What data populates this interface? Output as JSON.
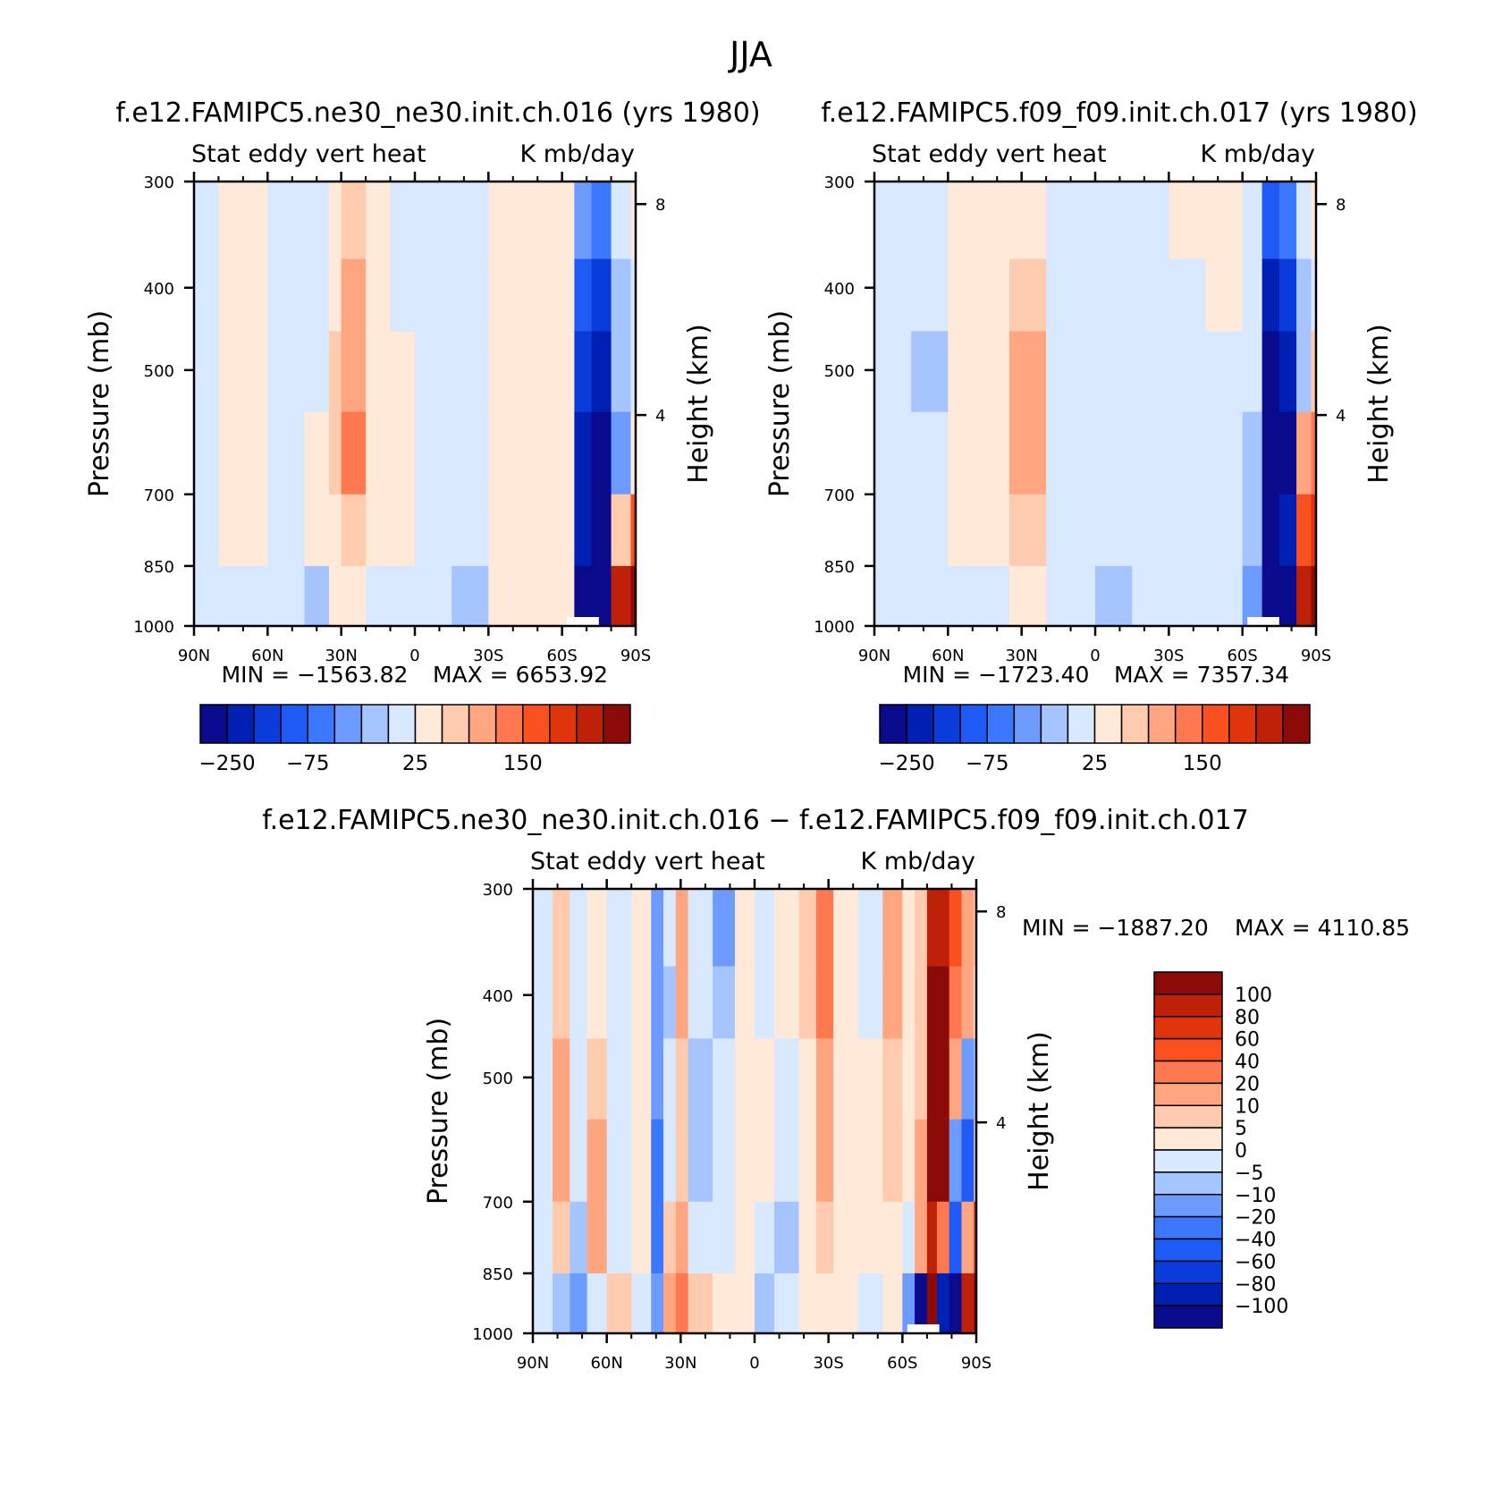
{
  "figure_title": "JJA",
  "colors": {
    "land_gap": "#ffffff",
    "axis": "#000000"
  },
  "chart_data": [
    {
      "type": "heatmap",
      "id": "p1",
      "title": "f.e12.FAMIPC5.ne30_ne30.init.ch.016 (yrs 1980)",
      "subtitle_left": "Stat eddy vert heat",
      "subtitle_right": "K mb/day",
      "ylabel": "Pressure (mb)",
      "ylabel_right": "Height (km)",
      "x_ticks": [
        "90N",
        "60N",
        "30N",
        "0",
        "30S",
        "60S",
        "90S"
      ],
      "x_range": [
        90,
        -90
      ],
      "y_ticks": [
        300,
        400,
        500,
        700,
        850,
        1000
      ],
      "y_range": [
        300,
        1000
      ],
      "height_ticks": [
        4,
        8
      ],
      "min_label": "MIN = −1563.82",
      "max_label": "MAX = 6653.92",
      "colorbar": {
        "orientation": "horizontal",
        "labels": [
          "−250",
          "−75",
          "25",
          "150"
        ],
        "colors": [
          "#0a0a8c",
          "#0020b4",
          "#0a3cdc",
          "#1e5af5",
          "#3c78ff",
          "#6e9bff",
          "#a6c4ff",
          "#d8e8ff",
          "#ffe9d8",
          "#ffcbae",
          "#ffa580",
          "#ff7850",
          "#fa5020",
          "#e0340a",
          "#be2008",
          "#8c0a08"
        ]
      },
      "field": [
        {
          "lat": 90,
          "values": [
            -1,
            -1,
            -1,
            -1,
            -1,
            -1
          ]
        },
        {
          "lat": 80,
          "values": [
            1,
            1,
            1,
            1,
            1,
            -1
          ]
        },
        {
          "lat": 70,
          "values": [
            1,
            1,
            1,
            1,
            0,
            -1
          ]
        },
        {
          "lat": 60,
          "values": [
            -1,
            -1,
            -1,
            -1,
            -1,
            -1
          ]
        },
        {
          "lat": 45,
          "values": [
            -1,
            -1,
            -1,
            1,
            1,
            -2
          ]
        },
        {
          "lat": 35,
          "values": [
            1,
            1,
            2,
            2,
            1,
            1
          ]
        },
        {
          "lat": 30,
          "values": [
            2,
            3,
            3,
            4,
            2,
            1
          ]
        },
        {
          "lat": 20,
          "values": [
            1,
            1,
            1,
            1,
            1,
            -1
          ]
        },
        {
          "lat": 10,
          "values": [
            -1,
            -1,
            1,
            1,
            1,
            -1
          ]
        },
        {
          "lat": 0,
          "values": [
            -1,
            -1,
            -1,
            -1,
            -1,
            -1
          ]
        },
        {
          "lat": -15,
          "values": [
            -1,
            -1,
            -1,
            -1,
            -1,
            -2
          ]
        },
        {
          "lat": -30,
          "values": [
            1,
            1,
            1,
            1,
            1,
            1
          ]
        },
        {
          "lat": -55,
          "values": [
            1,
            1,
            1,
            1,
            1,
            1
          ]
        },
        {
          "lat": -65,
          "values": [
            -3,
            -5,
            -6,
            -7,
            -7,
            -8
          ]
        },
        {
          "lat": -72,
          "values": [
            -4,
            -6,
            -7,
            -8,
            -8,
            -8
          ]
        },
        {
          "lat": -80,
          "values": [
            -1,
            -2,
            -2,
            -3,
            2,
            7
          ]
        },
        {
          "lat": -88,
          "values": [
            1,
            -1,
            -1,
            1,
            5,
            8
          ]
        }
      ]
    },
    {
      "type": "heatmap",
      "id": "p2",
      "title": "f.e12.FAMIPC5.f09_f09.init.ch.017 (yrs 1980)",
      "subtitle_left": "Stat eddy vert heat",
      "subtitle_right": "K mb/day",
      "ylabel": "Pressure (mb)",
      "ylabel_right": "Height (km)",
      "x_ticks": [
        "90N",
        "60N",
        "30N",
        "0",
        "30S",
        "60S",
        "90S"
      ],
      "x_range": [
        90,
        -90
      ],
      "y_ticks": [
        300,
        400,
        500,
        700,
        850,
        1000
      ],
      "y_range": [
        300,
        1000
      ],
      "height_ticks": [
        4,
        8
      ],
      "min_label": "MIN = −1723.40",
      "max_label": "MAX = 7357.34",
      "colorbar": {
        "orientation": "horizontal",
        "labels": [
          "−250",
          "−75",
          "25",
          "150"
        ],
        "colors": [
          "#0a0a8c",
          "#0020b4",
          "#0a3cdc",
          "#1e5af5",
          "#3c78ff",
          "#6e9bff",
          "#a6c4ff",
          "#d8e8ff",
          "#ffe9d8",
          "#ffcbae",
          "#ffa580",
          "#ff7850",
          "#fa5020",
          "#e0340a",
          "#be2008",
          "#8c0a08"
        ]
      },
      "field": [
        {
          "lat": 90,
          "values": [
            -1,
            -1,
            -1,
            -1,
            -1,
            -1
          ]
        },
        {
          "lat": 75,
          "values": [
            -1,
            -1,
            -2,
            -1,
            -1,
            -1
          ]
        },
        {
          "lat": 60,
          "values": [
            1,
            1,
            1,
            1,
            1,
            -1
          ]
        },
        {
          "lat": 45,
          "values": [
            1,
            1,
            1,
            1,
            1,
            -1
          ]
        },
        {
          "lat": 35,
          "values": [
            1,
            2,
            3,
            3,
            2,
            1
          ]
        },
        {
          "lat": 30,
          "values": [
            1,
            2,
            3,
            3,
            2,
            1
          ]
        },
        {
          "lat": 20,
          "values": [
            -1,
            -1,
            -1,
            -1,
            -1,
            -1
          ]
        },
        {
          "lat": 0,
          "values": [
            -1,
            -1,
            -1,
            -1,
            -1,
            -2
          ]
        },
        {
          "lat": -15,
          "values": [
            -1,
            -1,
            -1,
            -1,
            -1,
            -1
          ]
        },
        {
          "lat": -30,
          "values": [
            1,
            -1,
            -1,
            -1,
            -1,
            -1
          ]
        },
        {
          "lat": -45,
          "values": [
            1,
            1,
            -1,
            -1,
            -1,
            -1
          ]
        },
        {
          "lat": -60,
          "values": [
            -1,
            -1,
            -1,
            -2,
            -2,
            -3
          ]
        },
        {
          "lat": -68,
          "values": [
            -5,
            -7,
            -8,
            -8,
            -8,
            -8
          ]
        },
        {
          "lat": -75,
          "values": [
            -4,
            -6,
            -7,
            -8,
            -7,
            -8
          ]
        },
        {
          "lat": -82,
          "values": [
            -1,
            -2,
            -2,
            3,
            5,
            7
          ]
        },
        {
          "lat": -88,
          "values": [
            1,
            -1,
            2,
            4,
            6,
            8
          ]
        }
      ]
    },
    {
      "type": "heatmap",
      "id": "p3",
      "title": "f.e12.FAMIPC5.ne30_ne30.init.ch.016 − f.e12.FAMIPC5.f09_f09.init.ch.017",
      "subtitle_left": "Stat eddy vert heat",
      "subtitle_right": "K mb/day",
      "ylabel": "Pressure (mb)",
      "ylabel_right": "Height (km)",
      "x_ticks": [
        "90N",
        "60N",
        "30N",
        "0",
        "30S",
        "60S",
        "90S"
      ],
      "x_range": [
        90,
        -90
      ],
      "y_ticks": [
        300,
        400,
        500,
        700,
        850,
        1000
      ],
      "y_range": [
        300,
        1000
      ],
      "height_ticks": [
        4,
        8
      ],
      "min_label": "MIN = −1887.20",
      "max_label": "MAX = 4110.85",
      "colorbar": {
        "orientation": "vertical",
        "labels": [
          "100",
          "80",
          "60",
          "40",
          "20",
          "10",
          "5",
          "0",
          "−5",
          "−10",
          "−20",
          "−40",
          "−60",
          "−80",
          "−100"
        ],
        "colors": [
          "#8c0a08",
          "#be2008",
          "#e0340a",
          "#fa5020",
          "#ff7850",
          "#ffa580",
          "#ffcbae",
          "#ffe9d8",
          "#d8e8ff",
          "#a6c4ff",
          "#6e9bff",
          "#3c78ff",
          "#1e5af5",
          "#0a3cdc",
          "#0020b4",
          "#0a0a8c"
        ]
      },
      "field": [
        {
          "lat": 90,
          "values": [
            -1,
            -1,
            -1,
            -1,
            -1,
            -1
          ]
        },
        {
          "lat": 82,
          "values": [
            2,
            2,
            3,
            3,
            2,
            -2
          ]
        },
        {
          "lat": 75,
          "values": [
            -1,
            -1,
            -1,
            -1,
            -2,
            -3
          ]
        },
        {
          "lat": 68,
          "values": [
            1,
            1,
            2,
            3,
            3,
            -1
          ]
        },
        {
          "lat": 60,
          "values": [
            -1,
            -1,
            -1,
            -1,
            -1,
            2
          ]
        },
        {
          "lat": 50,
          "values": [
            1,
            1,
            1,
            1,
            1,
            -1
          ]
        },
        {
          "lat": 42,
          "values": [
            -3,
            -3,
            -3,
            -4,
            -4,
            -3
          ]
        },
        {
          "lat": 37,
          "values": [
            -1,
            -2,
            -1,
            -1,
            2,
            3
          ]
        },
        {
          "lat": 32,
          "values": [
            3,
            3,
            2,
            2,
            3,
            4
          ]
        },
        {
          "lat": 27,
          "values": [
            -1,
            -1,
            -2,
            -2,
            -1,
            2
          ]
        },
        {
          "lat": 17,
          "values": [
            -3,
            -2,
            -1,
            -1,
            -1,
            1
          ]
        },
        {
          "lat": 8,
          "values": [
            1,
            1,
            1,
            1,
            1,
            1
          ]
        },
        {
          "lat": 0,
          "values": [
            -1,
            -1,
            1,
            1,
            -1,
            -2
          ]
        },
        {
          "lat": -8,
          "values": [
            1,
            1,
            -1,
            -1,
            -2,
            -1
          ]
        },
        {
          "lat": -18,
          "values": [
            2,
            2,
            1,
            1,
            1,
            1
          ]
        },
        {
          "lat": -25,
          "values": [
            4,
            4,
            3,
            3,
            2,
            1
          ]
        },
        {
          "lat": -32,
          "values": [
            1,
            1,
            1,
            1,
            1,
            1
          ]
        },
        {
          "lat": -42,
          "values": [
            -1,
            -1,
            1,
            1,
            1,
            -1
          ]
        },
        {
          "lat": -52,
          "values": [
            3,
            3,
            2,
            2,
            1,
            1
          ]
        },
        {
          "lat": -60,
          "values": [
            1,
            1,
            1,
            1,
            -1,
            -3
          ]
        },
        {
          "lat": -65,
          "values": [
            2,
            2,
            2,
            3,
            3,
            -8
          ]
        },
        {
          "lat": -70,
          "values": [
            7,
            8,
            8,
            8,
            7,
            8
          ]
        },
        {
          "lat": -74,
          "values": [
            7,
            8,
            8,
            8,
            4,
            -7
          ]
        },
        {
          "lat": -79,
          "values": [
            5,
            4,
            3,
            -3,
            -5,
            -8
          ]
        },
        {
          "lat": -84,
          "values": [
            3,
            3,
            -3,
            -5,
            3,
            7
          ]
        },
        {
          "lat": -89,
          "values": [
            2,
            1,
            -2,
            2,
            6,
            8
          ]
        }
      ]
    }
  ]
}
